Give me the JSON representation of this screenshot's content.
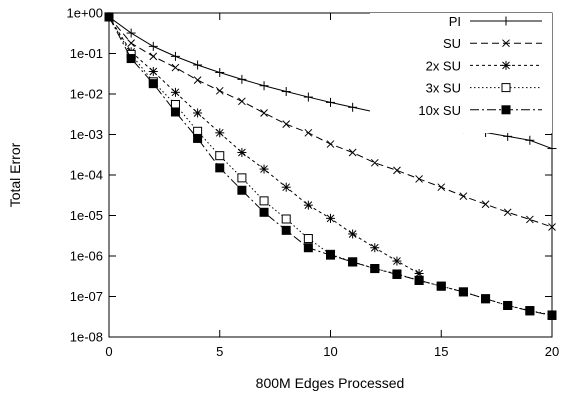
{
  "chart_data": {
    "type": "line",
    "xlabel": "800M Edges Processed",
    "ylabel": "Total Error",
    "xlim": [
      0,
      20
    ],
    "ylim_exp": [
      -8,
      0
    ],
    "y_scale": "log",
    "x_ticks": [
      0,
      5,
      10,
      15,
      20
    ],
    "y_tick_labels": [
      "1e-08",
      "1e-07",
      "1e-06",
      "1e-05",
      "1e-04",
      "1e-03",
      "1e-02",
      "1e-01",
      "1e+00"
    ],
    "grid": false,
    "legend_position": "top-right",
    "series": [
      {
        "name": "PI",
        "marker": "plus",
        "dash": "",
        "x": [
          0,
          1,
          2,
          3,
          4,
          5,
          6,
          7,
          8,
          9,
          10,
          11,
          12,
          13,
          14,
          15,
          16,
          17,
          18,
          19,
          20
        ],
        "y": [
          0.8,
          0.32,
          0.15,
          0.085,
          0.052,
          0.034,
          0.023,
          0.016,
          0.0115,
          0.0084,
          0.0062,
          0.0047,
          0.0036,
          0.0028,
          0.0022,
          0.00175,
          0.0014,
          0.00112,
          0.0009,
          0.00072,
          0.00045
        ]
      },
      {
        "name": "SU",
        "marker": "x",
        "dash": "7,4",
        "x": [
          0,
          1,
          2,
          3,
          4,
          5,
          6,
          7,
          8,
          9,
          10,
          11,
          12,
          13,
          14,
          15,
          16,
          17,
          18,
          19,
          20
        ],
        "y": [
          0.8,
          0.18,
          0.085,
          0.045,
          0.022,
          0.012,
          0.0066,
          0.0034,
          0.0018,
          0.0011,
          0.00058,
          0.00036,
          0.0002,
          0.00013,
          8e-05,
          5e-05,
          3e-05,
          1.9e-05,
          1.2e-05,
          8e-06,
          5.2e-06
        ]
      },
      {
        "name": "2x SU",
        "marker": "star",
        "dash": "3,3",
        "x": [
          0,
          1,
          2,
          3,
          4,
          5,
          6,
          7,
          8,
          9,
          10,
          11,
          12,
          13,
          14
        ],
        "y": [
          0.8,
          0.11,
          0.036,
          0.011,
          0.0034,
          0.0011,
          0.00036,
          0.00014,
          5e-05,
          1.8e-05,
          8.5e-06,
          3.5e-06,
          1.6e-06,
          7.5e-07,
          3.7e-07
        ]
      },
      {
        "name": "3x SU",
        "marker": "open-square",
        "dash": "1.5,2.5",
        "x": [
          0,
          1,
          2,
          3,
          4,
          5,
          6,
          7,
          8,
          9,
          10,
          11,
          12,
          13,
          14,
          15,
          16,
          17,
          18,
          19,
          20
        ],
        "y": [
          0.8,
          0.095,
          0.02,
          0.0055,
          0.0012,
          0.0003,
          8.5e-05,
          2.3e-05,
          8.2e-06,
          2.7e-06,
          1.1e-06,
          7.2e-07,
          4.9e-07,
          3.6e-07,
          2.5e-07,
          1.8e-07,
          1.3e-07,
          8.8e-08,
          6e-08,
          4.5e-08,
          3.5e-08
        ]
      },
      {
        "name": "10x SU",
        "marker": "filled-square",
        "dash": "9,3,2,3",
        "x": [
          0,
          1,
          2,
          3,
          4,
          5,
          6,
          7,
          8,
          9,
          10,
          11,
          12,
          13,
          14,
          15,
          16,
          17,
          18,
          19,
          20
        ],
        "y": [
          0.8,
          0.075,
          0.018,
          0.0036,
          0.0008,
          0.00015,
          4.2e-05,
          1.2e-05,
          4.3e-06,
          1.6e-06,
          1.05e-06,
          7.1e-07,
          4.9e-07,
          3.5e-07,
          2.5e-07,
          1.8e-07,
          1.3e-07,
          8.8e-08,
          6e-08,
          4.4e-08,
          3.4e-08
        ]
      }
    ]
  }
}
